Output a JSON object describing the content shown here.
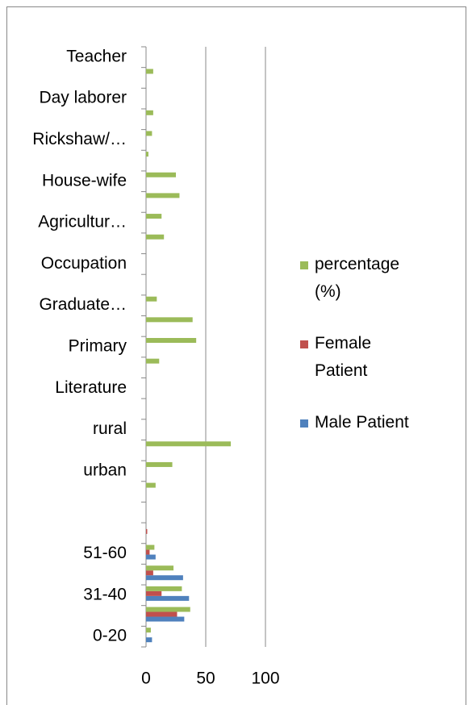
{
  "chart_data": {
    "type": "barh",
    "categories": [
      "0-20",
      null,
      "31-40",
      null,
      "51-60",
      null,
      null,
      null,
      "urban",
      null,
      "rural",
      null,
      "Literature",
      null,
      "Primary",
      null,
      "Graduate…",
      null,
      "Occupation",
      null,
      "Agricultur…",
      null,
      "House-wife",
      null,
      "Rickshaw/…",
      null,
      "Day laborer",
      null,
      "Teacher"
    ],
    "series": [
      {
        "name": "Male Patient",
        "color": "#4f81bd",
        "values": [
          5,
          32,
          36,
          31,
          8,
          null,
          null,
          null,
          null,
          null,
          null,
          null,
          null,
          null,
          null,
          null,
          null,
          null,
          null,
          null,
          null,
          null,
          null,
          null,
          null,
          null,
          null,
          null,
          null
        ]
      },
      {
        "name": "Female Patient",
        "color": "#c0504d",
        "values": [
          null,
          26,
          13,
          6,
          3,
          1,
          null,
          null,
          null,
          null,
          null,
          null,
          null,
          null,
          null,
          null,
          null,
          null,
          null,
          null,
          null,
          null,
          null,
          null,
          null,
          null,
          null,
          null,
          null
        ]
      },
      {
        "name": "percentage (%)",
        "color": "#9bbb59",
        "values": [
          4,
          37,
          30,
          23,
          7,
          null,
          null,
          8,
          22,
          71,
          null,
          null,
          null,
          11,
          42,
          39,
          9,
          null,
          null,
          15,
          13,
          28,
          25,
          2,
          5,
          6,
          null,
          6,
          null
        ]
      }
    ],
    "xlim": [
      0,
      100
    ],
    "xticks": [
      0,
      50,
      100
    ],
    "grid": true,
    "legend": "right"
  }
}
